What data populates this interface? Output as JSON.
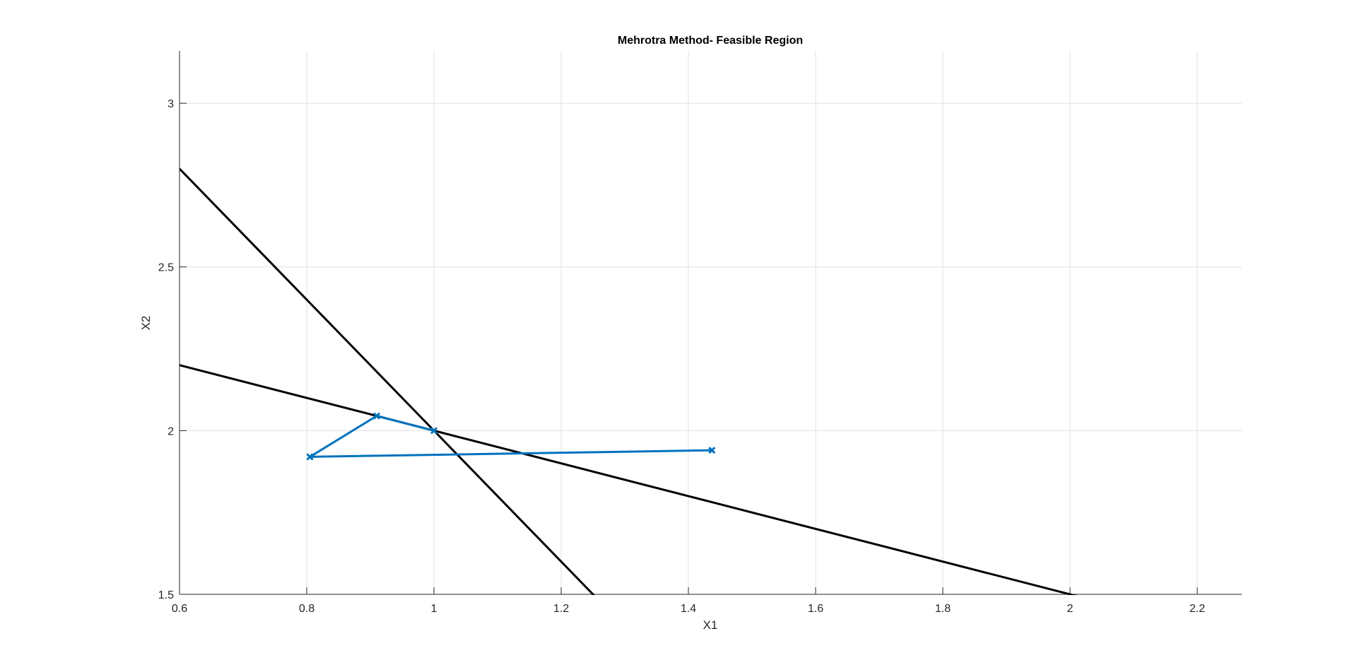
{
  "chart_data": {
    "type": "line",
    "title": "Mehrotra Method- Feasible Region",
    "xlabel": "X1",
    "ylabel": "X2",
    "xlim": [
      0.6,
      2.27
    ],
    "ylim": [
      1.5,
      3.16
    ],
    "x_ticks": [
      0.6,
      0.8,
      1.0,
      1.2,
      1.4,
      1.6,
      1.8,
      2.0,
      2.2
    ],
    "x_tick_labels": [
      "0.6",
      "0.8",
      "1",
      "1.2",
      "1.4",
      "1.6",
      "1.8",
      "2",
      "2.2"
    ],
    "y_ticks": [
      1.5,
      2.0,
      2.5,
      3.0
    ],
    "y_tick_labels": [
      "1.5",
      "2",
      "2.5",
      "3"
    ],
    "grid": true,
    "series": [
      {
        "role": "constraint",
        "color": "#000000",
        "x": [
          0.6,
          1.255
        ],
        "y": [
          2.8,
          1.49
        ]
      },
      {
        "role": "constraint",
        "color": "#000000",
        "x": [
          0.6,
          2.02
        ],
        "y": [
          2.2,
          1.49
        ]
      },
      {
        "role": "iterates",
        "color": "#0072BD",
        "marker": "x",
        "x": [
          1.437,
          0.805,
          0.91,
          1.0
        ],
        "y": [
          1.94,
          1.92,
          2.045,
          2.0
        ]
      }
    ]
  }
}
